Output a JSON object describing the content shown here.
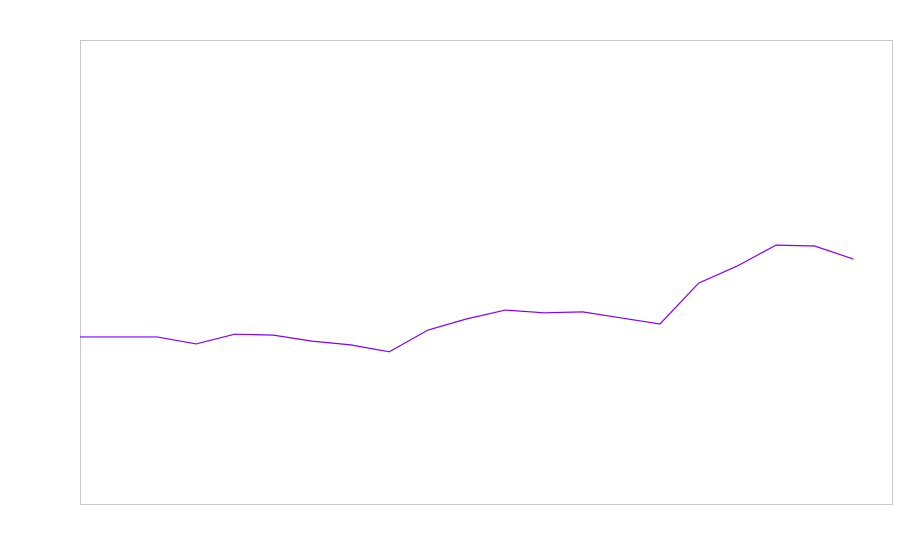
{
  "chart_data": {
    "type": "line",
    "x": [
      0,
      1,
      2,
      3,
      4,
      5,
      6,
      7,
      8,
      9,
      10,
      11,
      12,
      13,
      14,
      15,
      16,
      17,
      18,
      19,
      20
    ],
    "series": [
      {
        "color": "#7f00ff",
        "values": [
          36.0,
          36.0,
          36.0,
          34.5,
          36.6,
          36.4,
          35.1,
          34.3,
          32.8,
          37.5,
          39.9,
          41.8,
          41.2,
          41.4,
          40.1,
          38.8,
          47.6,
          51.3,
          55.8,
          55.6,
          52.8
        ]
      }
    ],
    "xlim": [
      0,
      21
    ],
    "ylim": [
      0,
      100
    ]
  }
}
